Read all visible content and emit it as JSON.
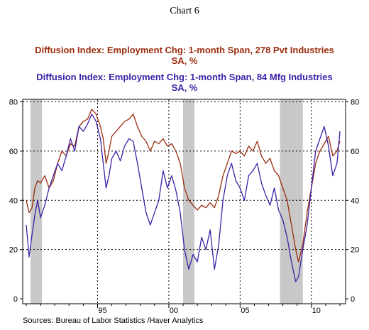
{
  "page": {
    "chart_number": "Chart 6",
    "source": "Sources:  Bureau of Labor Statistics /Haver Analytics"
  },
  "chart_data": {
    "type": "line",
    "series": [
      {
        "name": "Diffusion Index: Employment Chg: 1-month Span, 278 Pvt Industries SA, %",
        "title_line1": "Diffusion Index: Employment Chg: 1-month Span, 278 Pvt Industries",
        "title_line2": "SA, %",
        "color": "#9B2C0E",
        "points": [
          [
            1990.0,
            40
          ],
          [
            1990.2,
            35
          ],
          [
            1990.4,
            37
          ],
          [
            1990.6,
            45
          ],
          [
            1990.8,
            48
          ],
          [
            1991.0,
            47
          ],
          [
            1991.3,
            50
          ],
          [
            1991.6,
            45
          ],
          [
            1991.9,
            48
          ],
          [
            1992.2,
            55
          ],
          [
            1992.5,
            60
          ],
          [
            1992.8,
            58
          ],
          [
            1993.1,
            63
          ],
          [
            1993.4,
            62
          ],
          [
            1993.7,
            70
          ],
          [
            1994.0,
            72
          ],
          [
            1994.3,
            73
          ],
          [
            1994.6,
            77
          ],
          [
            1994.9,
            75
          ],
          [
            1995.2,
            70
          ],
          [
            1995.4,
            65
          ],
          [
            1995.6,
            55
          ],
          [
            1995.8,
            60
          ],
          [
            1996.0,
            66
          ],
          [
            1996.3,
            68
          ],
          [
            1996.6,
            70
          ],
          [
            1996.9,
            72
          ],
          [
            1997.2,
            73
          ],
          [
            1997.5,
            75
          ],
          [
            1997.8,
            70
          ],
          [
            1998.1,
            66
          ],
          [
            1998.4,
            64
          ],
          [
            1998.7,
            60
          ],
          [
            1999.0,
            64
          ],
          [
            1999.3,
            63
          ],
          [
            1999.6,
            65
          ],
          [
            1999.9,
            62
          ],
          [
            2000.2,
            63
          ],
          [
            2000.5,
            60
          ],
          [
            2000.8,
            55
          ],
          [
            2001.1,
            45
          ],
          [
            2001.4,
            40
          ],
          [
            2001.7,
            38
          ],
          [
            2002.0,
            36
          ],
          [
            2002.3,
            38
          ],
          [
            2002.6,
            37
          ],
          [
            2002.9,
            39
          ],
          [
            2003.2,
            37
          ],
          [
            2003.5,
            42
          ],
          [
            2003.8,
            50
          ],
          [
            2004.1,
            55
          ],
          [
            2004.4,
            60
          ],
          [
            2004.7,
            59
          ],
          [
            2005.0,
            60
          ],
          [
            2005.3,
            58
          ],
          [
            2005.6,
            62
          ],
          [
            2005.9,
            60
          ],
          [
            2006.2,
            64
          ],
          [
            2006.5,
            58
          ],
          [
            2006.8,
            55
          ],
          [
            2007.1,
            57
          ],
          [
            2007.4,
            52
          ],
          [
            2007.7,
            50
          ],
          [
            2008.0,
            45
          ],
          [
            2008.3,
            40
          ],
          [
            2008.6,
            30
          ],
          [
            2008.9,
            20
          ],
          [
            2009.1,
            15
          ],
          [
            2009.4,
            22
          ],
          [
            2009.7,
            35
          ],
          [
            2010.0,
            45
          ],
          [
            2010.3,
            55
          ],
          [
            2010.6,
            60
          ],
          [
            2010.9,
            63
          ],
          [
            2011.2,
            66
          ],
          [
            2011.5,
            58
          ],
          [
            2011.8,
            60
          ],
          [
            2012.0,
            64
          ]
        ]
      },
      {
        "name": "Diffusion Index: Employment Chg: 1-month Span, 84 Mfg Industries SA, %",
        "title_line1": "Diffusion Index: Employment Chg: 1-month Span, 84 Mfg Industries",
        "title_line2": "SA, %",
        "color": "#3B1FA8",
        "points": [
          [
            1990.0,
            30
          ],
          [
            1990.2,
            17
          ],
          [
            1990.4,
            26
          ],
          [
            1990.6,
            34
          ],
          [
            1990.8,
            40
          ],
          [
            1991.0,
            33
          ],
          [
            1991.3,
            38
          ],
          [
            1991.6,
            45
          ],
          [
            1991.9,
            50
          ],
          [
            1992.2,
            55
          ],
          [
            1992.5,
            52
          ],
          [
            1992.8,
            58
          ],
          [
            1993.1,
            65
          ],
          [
            1993.4,
            60
          ],
          [
            1993.7,
            70
          ],
          [
            1994.0,
            68
          ],
          [
            1994.3,
            71
          ],
          [
            1994.6,
            75
          ],
          [
            1994.9,
            72
          ],
          [
            1995.2,
            65
          ],
          [
            1995.4,
            55
          ],
          [
            1995.6,
            45
          ],
          [
            1995.8,
            50
          ],
          [
            1996.0,
            57
          ],
          [
            1996.3,
            60
          ],
          [
            1996.6,
            56
          ],
          [
            1996.9,
            62
          ],
          [
            1997.2,
            65
          ],
          [
            1997.5,
            64
          ],
          [
            1997.8,
            55
          ],
          [
            1998.1,
            45
          ],
          [
            1998.4,
            35
          ],
          [
            1998.7,
            30
          ],
          [
            1999.0,
            35
          ],
          [
            1999.3,
            40
          ],
          [
            1999.6,
            52
          ],
          [
            1999.9,
            45
          ],
          [
            2000.2,
            50
          ],
          [
            2000.5,
            44
          ],
          [
            2000.8,
            35
          ],
          [
            2001.1,
            20
          ],
          [
            2001.4,
            12
          ],
          [
            2001.7,
            18
          ],
          [
            2002.0,
            15
          ],
          [
            2002.3,
            25
          ],
          [
            2002.6,
            20
          ],
          [
            2002.9,
            28
          ],
          [
            2003.2,
            12
          ],
          [
            2003.5,
            22
          ],
          [
            2003.8,
            40
          ],
          [
            2004.1,
            50
          ],
          [
            2004.4,
            55
          ],
          [
            2004.7,
            48
          ],
          [
            2005.0,
            45
          ],
          [
            2005.3,
            40
          ],
          [
            2005.6,
            50
          ],
          [
            2005.9,
            52
          ],
          [
            2006.2,
            55
          ],
          [
            2006.5,
            47
          ],
          [
            2006.8,
            42
          ],
          [
            2007.1,
            38
          ],
          [
            2007.4,
            45
          ],
          [
            2007.7,
            36
          ],
          [
            2008.0,
            32
          ],
          [
            2008.3,
            25
          ],
          [
            2008.6,
            15
          ],
          [
            2008.9,
            7
          ],
          [
            2009.1,
            9
          ],
          [
            2009.4,
            20
          ],
          [
            2009.7,
            30
          ],
          [
            2010.0,
            45
          ],
          [
            2010.3,
            60
          ],
          [
            2010.6,
            65
          ],
          [
            2010.9,
            70
          ],
          [
            2011.2,
            62
          ],
          [
            2011.5,
            50
          ],
          [
            2011.8,
            55
          ],
          [
            2012.0,
            68
          ]
        ]
      }
    ],
    "recessions": [
      [
        1990.3,
        1991.1
      ],
      [
        2001.0,
        2001.8
      ],
      [
        2007.8,
        2009.4
      ]
    ],
    "xlim": [
      1989.75,
      2012.4
    ],
    "x_ticks": [
      {
        "year": 1995,
        "label": "95"
      },
      {
        "year": 2000,
        "label": "00"
      },
      {
        "year": 2005,
        "label": "05"
      },
      {
        "year": 2010,
        "label": "10"
      }
    ],
    "ylim": [
      -2,
      81
    ],
    "y_ticks": [
      0,
      20,
      40,
      60,
      80
    ],
    "grid": "dotted",
    "legend": "top, as stacked titles"
  }
}
